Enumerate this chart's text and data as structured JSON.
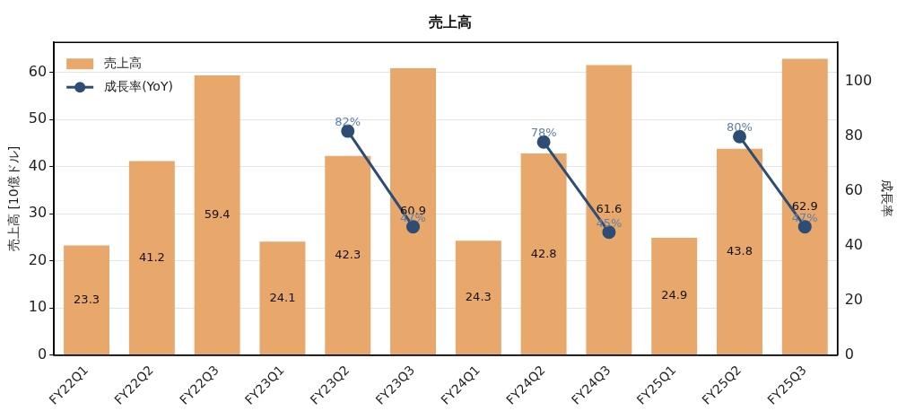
{
  "chart_data": {
    "type": "bar",
    "title": "売上高",
    "ylabel": "売上高 [10億ドル]",
    "y2label": "成長率",
    "categories": [
      "FY22Q1",
      "FY22Q2",
      "FY22Q3",
      "FY23Q1",
      "FY23Q2",
      "FY23Q3",
      "FY24Q1",
      "FY24Q2",
      "FY24Q3",
      "FY25Q1",
      "FY25Q2",
      "FY25Q3"
    ],
    "series": [
      {
        "name": "売上高",
        "color": "#e8a76b",
        "values": [
          23.3,
          41.2,
          59.4,
          24.1,
          42.3,
          60.9,
          24.3,
          42.8,
          61.6,
          24.9,
          43.8,
          62.9
        ]
      },
      {
        "name": "成長率(YoY)",
        "type": "line",
        "axis": "y2",
        "color": "#2e4d75",
        "values": [
          null,
          null,
          null,
          null,
          82,
          47,
          null,
          78,
          45,
          null,
          80,
          47
        ],
        "value_labels": [
          null,
          null,
          null,
          null,
          "82%",
          "47%",
          null,
          "78%",
          "45%",
          null,
          "80%",
          "47%"
        ]
      }
    ],
    "ylim": [
      0,
      66.4
    ],
    "yticks": [
      0,
      10,
      20,
      30,
      40,
      50,
      60
    ],
    "y2lim": [
      0,
      114.5
    ],
    "y2ticks": [
      0,
      20,
      40,
      60,
      80,
      100
    ],
    "data_labels": true,
    "grid": "y",
    "legend": "top left",
    "marker": "circle",
    "line_style": "solid"
  }
}
